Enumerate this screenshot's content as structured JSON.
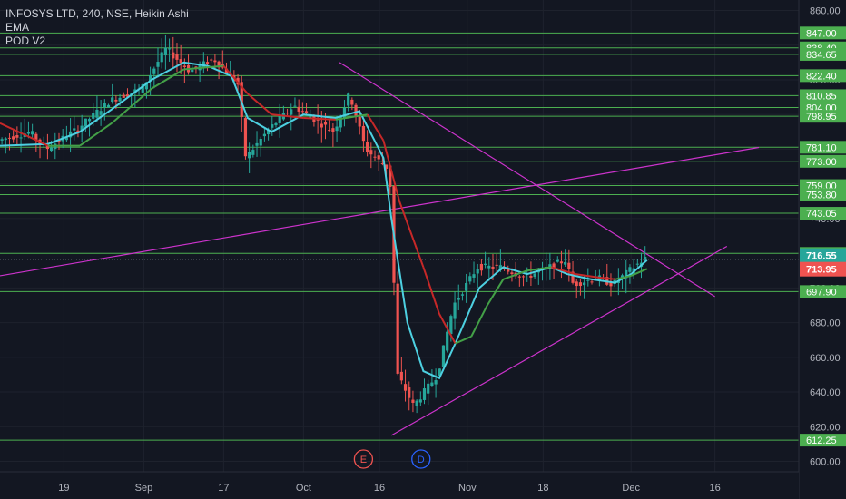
{
  "chart_data": {
    "type": "candlestick",
    "legend": {
      "symbol_line": "INFOSYS LTD, 240, NSE, Heikin Ashi",
      "indicators": [
        "EMA",
        "POD V2"
      ]
    },
    "y_axis": {
      "ticks": [
        860,
        840,
        820,
        800,
        780,
        760,
        740,
        720,
        700,
        680,
        660,
        640,
        620,
        600
      ],
      "range": [
        594,
        866
      ]
    },
    "x_axis": {
      "ticks": [
        "19",
        "Sep",
        "17",
        "Oct",
        "16",
        "Nov",
        "18",
        "Dec",
        "16"
      ]
    },
    "horizontal_levels": [
      847.0,
      838.4,
      834.65,
      822.4,
      810.85,
      804.0,
      798.95,
      781.1,
      773.0,
      759.0,
      753.8,
      743.05,
      719.9,
      697.9,
      612.25
    ],
    "level_color": "#4caf50",
    "last_price": {
      "label": "716.55",
      "value": 716.55,
      "color": "#26a69a"
    },
    "ema_price": {
      "label": "713.95",
      "value": 713.95,
      "color": "#ef5350"
    },
    "markers": [
      {
        "label": "E",
        "color": "#ef5350"
      },
      {
        "label": "D",
        "color": "#2962ff"
      }
    ],
    "colors": {
      "up": "#26a69a",
      "down": "#ef5350",
      "ema_fast": "#4dd0e1",
      "trendline": "#cc33cc"
    },
    "price_path": [
      [
        0,
        785
      ],
      [
        0.04,
        790
      ],
      [
        0.06,
        780
      ],
      [
        0.1,
        792
      ],
      [
        0.14,
        808
      ],
      [
        0.18,
        815
      ],
      [
        0.21,
        838
      ],
      [
        0.24,
        825
      ],
      [
        0.27,
        832
      ],
      [
        0.3,
        818
      ],
      [
        0.31,
        775
      ],
      [
        0.34,
        792
      ],
      [
        0.37,
        805
      ],
      [
        0.4,
        796
      ],
      [
        0.42,
        790
      ],
      [
        0.44,
        812
      ],
      [
        0.46,
        780
      ],
      [
        0.49,
        768
      ],
      [
        0.5,
        650
      ],
      [
        0.52,
        632
      ],
      [
        0.55,
        650
      ],
      [
        0.57,
        690
      ],
      [
        0.6,
        712
      ],
      [
        0.63,
        712
      ],
      [
        0.66,
        706
      ],
      [
        0.68,
        710
      ],
      [
        0.71,
        716
      ],
      [
        0.72,
        702
      ],
      [
        0.75,
        706
      ],
      [
        0.77,
        702
      ],
      [
        0.79,
        710
      ],
      [
        0.81,
        717
      ]
    ],
    "ema_fast_path": [
      [
        0,
        782
      ],
      [
        0.06,
        783
      ],
      [
        0.1,
        790
      ],
      [
        0.14,
        803
      ],
      [
        0.19,
        820
      ],
      [
        0.23,
        830
      ],
      [
        0.26,
        828
      ],
      [
        0.29,
        822
      ],
      [
        0.31,
        798
      ],
      [
        0.34,
        790
      ],
      [
        0.38,
        800
      ],
      [
        0.42,
        798
      ],
      [
        0.45,
        802
      ],
      [
        0.48,
        775
      ],
      [
        0.49,
        740
      ],
      [
        0.51,
        680
      ],
      [
        0.53,
        652
      ],
      [
        0.55,
        648
      ],
      [
        0.57,
        668
      ],
      [
        0.6,
        700
      ],
      [
        0.63,
        712
      ],
      [
        0.66,
        708
      ],
      [
        0.69,
        712
      ],
      [
        0.71,
        708
      ],
      [
        0.74,
        705
      ],
      [
        0.77,
        703
      ],
      [
        0.79,
        708
      ],
      [
        0.81,
        716
      ]
    ],
    "ema_slow_path": [
      [
        0,
        795
      ],
      [
        0.06,
        782
      ],
      [
        0.1,
        782
      ],
      [
        0.14,
        795
      ],
      [
        0.19,
        815
      ],
      [
        0.23,
        826
      ],
      [
        0.28,
        828
      ],
      [
        0.31,
        812
      ],
      [
        0.34,
        800
      ],
      [
        0.38,
        798
      ],
      [
        0.42,
        797
      ],
      [
        0.46,
        800
      ],
      [
        0.48,
        785
      ],
      [
        0.5,
        750
      ],
      [
        0.53,
        712
      ],
      [
        0.55,
        685
      ],
      [
        0.57,
        668
      ],
      [
        0.59,
        672
      ],
      [
        0.61,
        690
      ],
      [
        0.63,
        705
      ],
      [
        0.66,
        710
      ],
      [
        0.69,
        712
      ],
      [
        0.72,
        708
      ],
      [
        0.75,
        706
      ],
      [
        0.77,
        705
      ],
      [
        0.79,
        707
      ],
      [
        0.81,
        711
      ]
    ],
    "trendlines": [
      {
        "from": [
          0.0,
          707
        ],
        "to": [
          0.95,
          781
        ]
      },
      {
        "from": [
          0.425,
          830
        ],
        "to": [
          0.895,
          695
        ]
      },
      {
        "from": [
          0.49,
          615
        ],
        "to": [
          0.91,
          724
        ]
      }
    ]
  }
}
